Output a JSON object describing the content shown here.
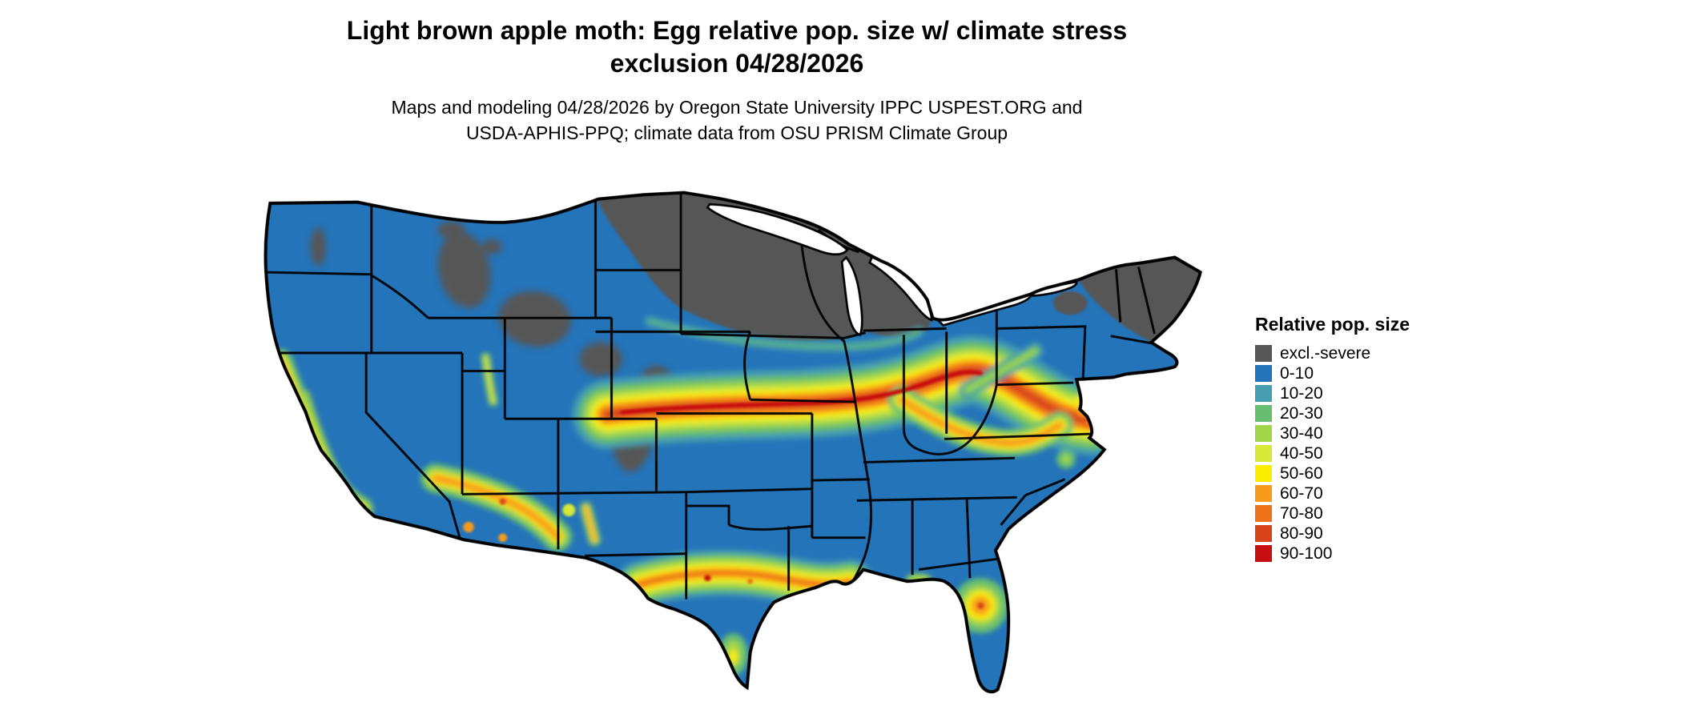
{
  "title": {
    "line1": "Light brown apple moth: Egg relative pop. size w/ climate stress",
    "line2": "exclusion 04/28/2026"
  },
  "subtitle": {
    "line1": "Maps and modeling 04/28/2026 by Oregon State University IPPC USPEST.ORG and",
    "line2": "USDA-APHIS-PPQ; climate data from OSU PRISM Climate Group"
  },
  "legend": {
    "title": "Relative pop. size",
    "items": [
      {
        "label": "excl.-severe",
        "color_key": "excl"
      },
      {
        "label": "0-10",
        "color_key": "c0_10"
      },
      {
        "label": "10-20",
        "color_key": "c10_20"
      },
      {
        "label": "20-30",
        "color_key": "c20_30"
      },
      {
        "label": "30-40",
        "color_key": "c30_40"
      },
      {
        "label": "40-50",
        "color_key": "c40_50"
      },
      {
        "label": "50-60",
        "color_key": "c50_60"
      },
      {
        "label": "60-70",
        "color_key": "c60_70"
      },
      {
        "label": "70-80",
        "color_key": "c70_80"
      },
      {
        "label": "80-90",
        "color_key": "c80_90"
      },
      {
        "label": "90-100",
        "color_key": "c90_100"
      }
    ]
  },
  "colors": {
    "excl": "#575757",
    "c0_10": "#2474BA",
    "c10_20": "#469EB0",
    "c20_30": "#67BE71",
    "c30_40": "#A2D649",
    "c40_50": "#D7E838",
    "c50_60": "#FBED00",
    "c60_70": "#F89B1C",
    "c70_80": "#EE7218",
    "c80_90": "#D9441A",
    "c90_100": "#C70E10",
    "border": "#000000",
    "lake": "#ffffff"
  }
}
